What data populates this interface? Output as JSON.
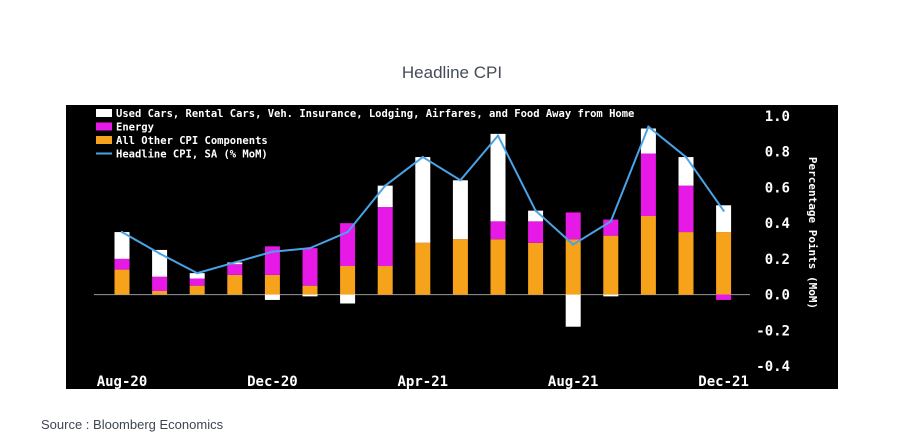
{
  "page": {
    "title": "Headline CPI",
    "source": "Source : Bloomberg Economics"
  },
  "colors": {
    "background": "#000000",
    "used_cars_etc": "#ffffff",
    "energy": "#e619e6",
    "other": "#f7a21b",
    "headline_line": "#4aa3e6",
    "text": "#ffffff"
  },
  "chart_data": {
    "type": "bar",
    "stacked": true,
    "categories": [
      "Aug-20",
      "Sep-20",
      "Oct-20",
      "Nov-20",
      "Dec-20",
      "Jan-21",
      "Feb-21",
      "Mar-21",
      "Apr-21",
      "May-21",
      "Jun-21",
      "Jul-21",
      "Aug-21",
      "Sep-21",
      "Oct-21",
      "Nov-21",
      "Dec-21"
    ],
    "x_tick_labels": [
      "Aug-20",
      "Dec-20",
      "Apr-21",
      "Aug-21",
      "Dec-21"
    ],
    "series": [
      {
        "name": "Used Cars, Rental Cars, Veh. Insurance, Lodging, Airfares, and Food Away from Home",
        "type": "bar",
        "values": [
          0.15,
          0.15,
          0.03,
          0.01,
          -0.03,
          -0.01,
          -0.05,
          0.12,
          0.48,
          0.33,
          0.49,
          0.06,
          -0.18,
          -0.01,
          0.14,
          0.16,
          0.15
        ]
      },
      {
        "name": "Energy",
        "type": "bar",
        "values": [
          0.06,
          0.08,
          0.04,
          0.06,
          0.16,
          0.21,
          0.24,
          0.33,
          0.0,
          0.0,
          0.1,
          0.12,
          0.15,
          0.09,
          0.35,
          0.26,
          -0.03
        ]
      },
      {
        "name": "All Other CPI Components",
        "type": "bar",
        "values": [
          0.14,
          0.02,
          0.05,
          0.11,
          0.11,
          0.05,
          0.16,
          0.16,
          0.29,
          0.31,
          0.31,
          0.29,
          0.31,
          0.33,
          0.44,
          0.35,
          0.35
        ]
      },
      {
        "name": "Headline CPI, SA (% MoM)",
        "type": "line",
        "values": [
          0.35,
          0.23,
          0.12,
          0.18,
          0.24,
          0.26,
          0.35,
          0.61,
          0.77,
          0.64,
          0.89,
          0.47,
          0.28,
          0.41,
          0.94,
          0.77,
          0.47
        ]
      }
    ],
    "y_ticks": [
      "1.0",
      "0.8",
      "0.6",
      "0.4",
      "0.2",
      "0.0",
      "-0.2",
      "-0.4"
    ],
    "ylabel": "Percentage Points (MoM)",
    "ylim": [
      -0.4,
      1.0
    ],
    "legend": "top-left",
    "grid": false,
    "y_axis_side": "right"
  }
}
